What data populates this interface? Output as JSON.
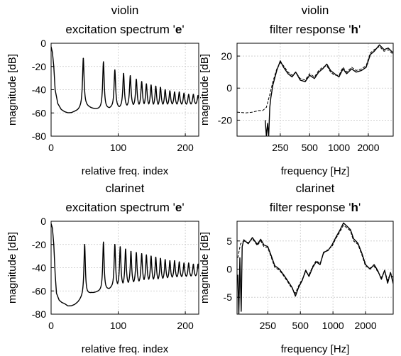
{
  "chart_data": [
    {
      "type": "line",
      "title_lines": [
        "violin",
        "excitation spectrum 'e'"
      ],
      "xlabel": "relative freq. index",
      "ylabel": "magnitude [dB]",
      "xlim": [
        0,
        220
      ],
      "ylim": [
        -80,
        0
      ],
      "xticks": [
        0,
        100,
        200
      ],
      "yticks": [
        0,
        -20,
        -40,
        -60,
        -80
      ],
      "grid": true,
      "log_x": false,
      "envelope": {
        "x": [
          0,
          2,
          4,
          6,
          10,
          15,
          20,
          25,
          30,
          40,
          45,
          50,
          60,
          70,
          80,
          90,
          100,
          120,
          140,
          160,
          180,
          200,
          220
        ],
        "y": [
          -3,
          -8,
          -20,
          -40,
          -52,
          -57,
          -59,
          -60,
          -60,
          -58,
          -56,
          -54,
          -56,
          -57,
          -57,
          -56,
          -56,
          -55,
          -55,
          -55,
          -54,
          -54,
          -53
        ]
      },
      "peaks": {
        "x": [
          48,
          78,
          95,
          108,
          118,
          127,
          135,
          142,
          149,
          156,
          163,
          170,
          177,
          184,
          191,
          198,
          205,
          212,
          219
        ],
        "y": [
          -13,
          -16,
          -23,
          -26,
          -28,
          -31,
          -33,
          -35,
          -36,
          -37,
          -38,
          -40,
          -41,
          -42,
          -42,
          -43,
          -44,
          -44,
          -45
        ]
      },
      "peak_width": 2.4
    },
    {
      "type": "line",
      "title_lines": [
        "violin",
        "filter response 'h'"
      ],
      "xlabel": "frequency [Hz]",
      "ylabel": "magnitude [dB]",
      "xlim": [
        90,
        3600
      ],
      "ylim": [
        -30,
        28
      ],
      "xticks": [
        250,
        500,
        1000,
        2000
      ],
      "yticks": [
        20,
        0,
        -20
      ],
      "grid": true,
      "log_x": true,
      "series": [
        {
          "name": "",
          "style": "dashed",
          "x": [
            90,
            110,
            130,
            150,
            165,
            180,
            195,
            210,
            230,
            250,
            270,
            300,
            330,
            360,
            400,
            450,
            500,
            560,
            620,
            680,
            750,
            820,
            900,
            1000,
            1100,
            1200,
            1350,
            1500,
            1700,
            1900,
            2100,
            2300,
            2600,
            2900,
            3200,
            3600
          ],
          "y": [
            -15,
            -15.5,
            -15,
            -14,
            -14,
            -12,
            -4,
            4,
            12,
            16,
            14,
            10,
            8,
            10,
            6,
            5,
            9,
            7,
            11,
            13,
            14,
            10,
            8,
            8,
            13,
            10,
            13,
            11,
            12,
            14,
            22,
            24,
            26,
            23,
            24,
            21
          ]
        },
        {
          "name": "",
          "style": "solid",
          "x": [
            175,
            180,
            185,
            190,
            195,
            200,
            210,
            230,
            250,
            270,
            300,
            330,
            360,
            400,
            450,
            500,
            560,
            620,
            680,
            750,
            820,
            900,
            1000,
            1100,
            1200,
            1350,
            1500,
            1700,
            1900,
            2100,
            2300,
            2600,
            2900,
            3200,
            3600
          ],
          "y": [
            -20,
            -30,
            -22,
            -30,
            -12,
            -6,
            2,
            11,
            17,
            13,
            9,
            7,
            10,
            5,
            4,
            8,
            6,
            10,
            12,
            15,
            11,
            9,
            7,
            12,
            9,
            12,
            10,
            11,
            13,
            21,
            23,
            27,
            24,
            25,
            22
          ]
        }
      ]
    },
    {
      "type": "line",
      "title_lines": [
        "clarinet",
        "excitation spectrum 'e'"
      ],
      "xlabel": "relative freq. index",
      "ylabel": "magnitude [dB]",
      "xlim": [
        0,
        220
      ],
      "ylim": [
        -80,
        0
      ],
      "xticks": [
        0,
        100,
        200
      ],
      "yticks": [
        0,
        -20,
        -40,
        -60,
        -80
      ],
      "grid": true,
      "log_x": false,
      "envelope": {
        "x": [
          0,
          2,
          4,
          6,
          8,
          12,
          16,
          20,
          25,
          30,
          35,
          40,
          45,
          50,
          60,
          70,
          80,
          90,
          100,
          120,
          140,
          160,
          180,
          200,
          220
        ],
        "y": [
          -2,
          -6,
          -20,
          -45,
          -62,
          -68,
          -70,
          -71,
          -73,
          -73,
          -72,
          -70,
          -67,
          -64,
          -62,
          -61,
          -60,
          -58,
          -57,
          -55,
          -53,
          -52,
          -50,
          -49,
          -48
        ]
      },
      "peaks": {
        "x": [
          50,
          78,
          95,
          103,
          111,
          119,
          127,
          135,
          142,
          149,
          156,
          163,
          170,
          177,
          184,
          191,
          198,
          205,
          212,
          219
        ],
        "y": [
          -20,
          -18,
          -20,
          -22,
          -24,
          -26,
          -27,
          -28,
          -29,
          -30,
          -31,
          -32,
          -33,
          -34,
          -34,
          -35,
          -36,
          -36,
          -37,
          -37
        ]
      },
      "peak_width": 2.2
    },
    {
      "type": "line",
      "title_lines": [
        "clarinet",
        "filter response 'h'"
      ],
      "xlabel": "frequency [Hz]",
      "ylabel": "magnitude [dB]",
      "xlim": [
        130,
        3600
      ],
      "ylim": [
        -8,
        8.5
      ],
      "xticks": [
        250,
        500,
        1000,
        2000
      ],
      "yticks": [
        5,
        0,
        -5
      ],
      "grid": true,
      "log_x": true,
      "series": [
        {
          "name": "",
          "style": "dashed",
          "x": [
            132,
            140,
            150,
            165,
            180,
            200,
            215,
            230,
            250,
            270,
            290,
            320,
            350,
            380,
            420,
            450,
            480,
            520,
            560,
            600,
            650,
            700,
            760,
            820,
            900,
            980,
            1060,
            1150,
            1250,
            1350,
            1450,
            1550,
            1700,
            1850,
            2000,
            2200,
            2400,
            2600,
            2800,
            3000,
            3200,
            3400,
            3600
          ],
          "y": [
            2,
            4.5,
            5,
            4.7,
            5.4,
            4.2,
            5,
            4,
            3.8,
            2,
            0.3,
            -0.2,
            -1.2,
            -2.2,
            -3.5,
            -4.3,
            -3,
            -1.8,
            -0.5,
            -1,
            0.5,
            1.5,
            1,
            2.8,
            3.5,
            4,
            5.4,
            6.5,
            7.8,
            7.3,
            6.8,
            5,
            4.4,
            2.5,
            0.5,
            0.2,
            0.5,
            -0.5,
            -1.5,
            -0.3,
            -2,
            -0.7,
            -1.5
          ]
        },
        {
          "name": "",
          "style": "solid",
          "x": [
            132,
            135,
            138,
            142,
            145,
            150,
            165,
            180,
            200,
            215,
            230,
            250,
            270,
            290,
            320,
            350,
            380,
            420,
            450,
            480,
            520,
            560,
            600,
            650,
            700,
            760,
            820,
            900,
            980,
            1060,
            1150,
            1250,
            1350,
            1450,
            1550,
            1700,
            1850,
            2000,
            2200,
            2400,
            2600,
            2800,
            3000,
            3200,
            3400,
            3600
          ],
          "y": [
            -1,
            -8,
            2,
            -7.5,
            4,
            5.2,
            4.5,
            5.6,
            4.4,
            5.3,
            4.3,
            4,
            2.3,
            0.6,
            0,
            -1,
            -2,
            -3.3,
            -4.8,
            -3.3,
            -2,
            -0.2,
            -1.3,
            0.3,
            1.3,
            0.8,
            3,
            3.3,
            4.3,
            5.6,
            6.8,
            8.2,
            7.6,
            7,
            5.4,
            4.6,
            2.8,
            0.8,
            0,
            0.8,
            -0.3,
            -1.8,
            -0.2,
            -2.5,
            -0.6,
            -2.6
          ]
        }
      ]
    }
  ]
}
